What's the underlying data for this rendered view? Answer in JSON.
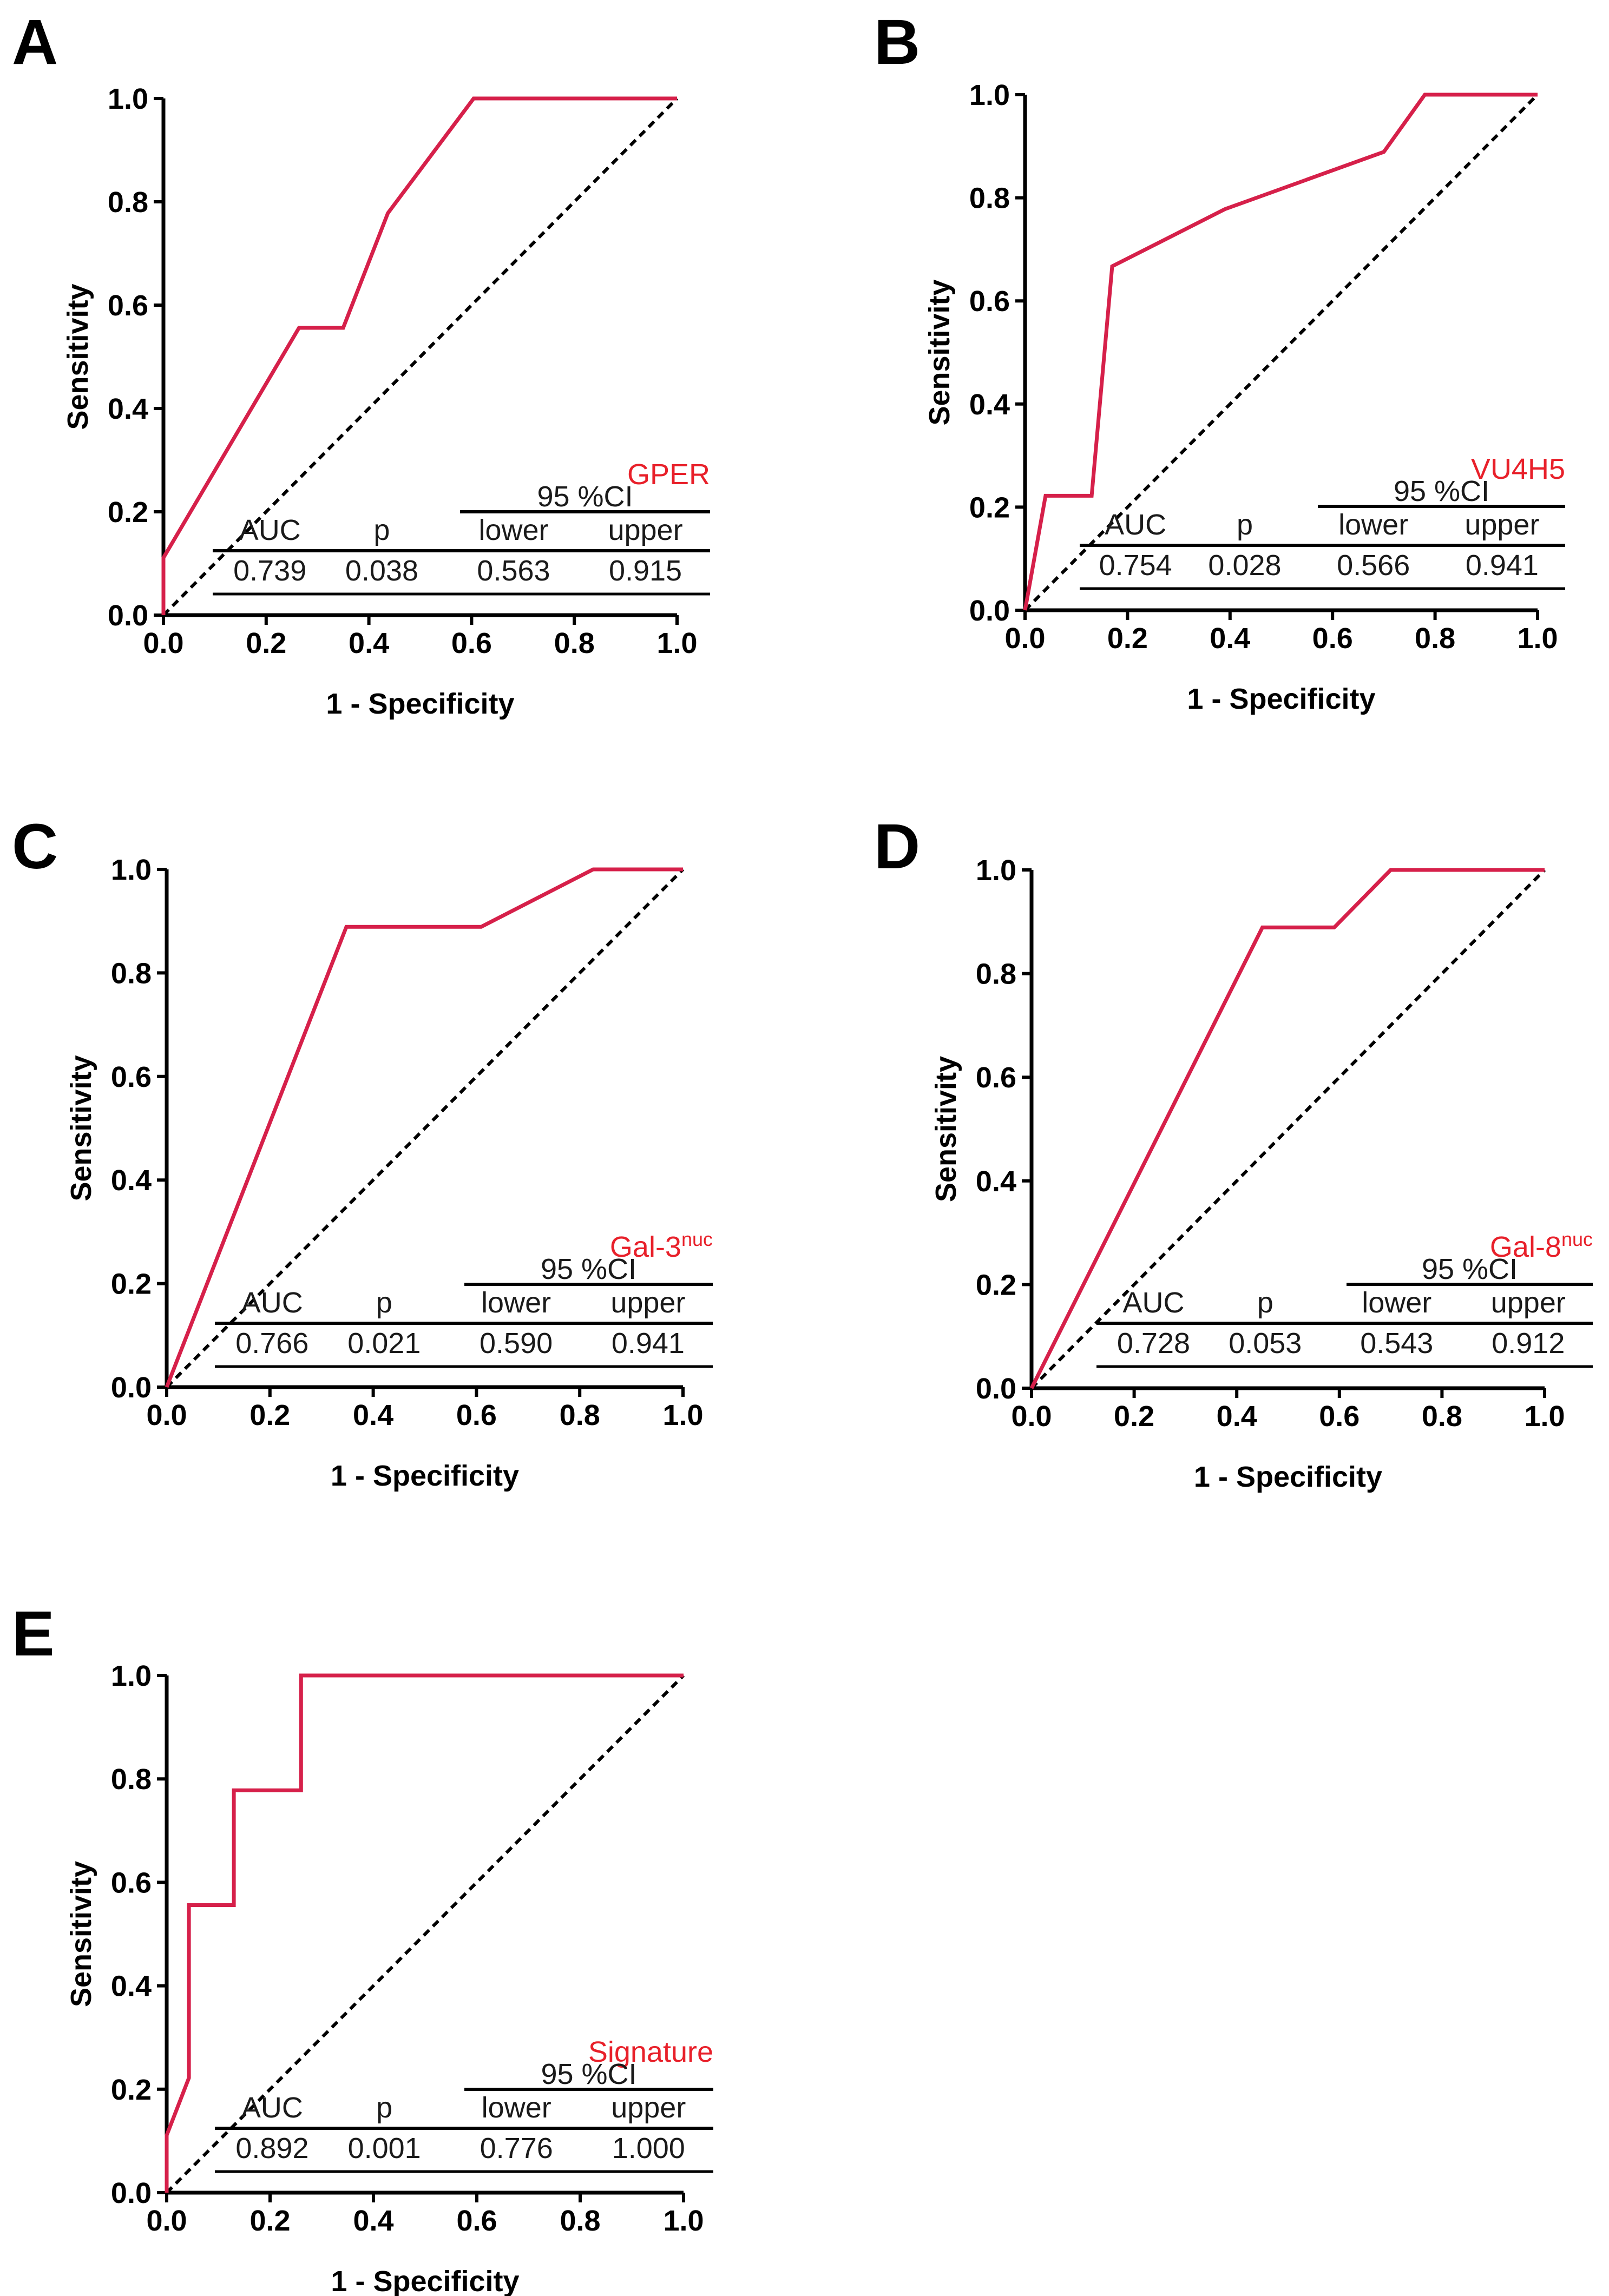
{
  "figure": {
    "x_label": "1 - Specificity",
    "y_label": "Sensitivity",
    "ticks": [
      "0.0",
      "0.2",
      "0.4",
      "0.6",
      "0.8",
      "1.0"
    ],
    "table_headers": {
      "ci": "95 %CI",
      "auc": "AUC",
      "p": "p",
      "lower": "lower",
      "upper": "upper"
    },
    "colors": {
      "roc": "#d6204a",
      "label": "#e8202a",
      "axis": "#000000",
      "reference": "#000000"
    }
  },
  "chart_data": [
    {
      "type": "line",
      "panel": "A",
      "marker": "GPER",
      "marker_sup": "",
      "xlabel": "1 - Specificity",
      "ylabel": "Sensitivity",
      "xlim": [
        0,
        1
      ],
      "ylim": [
        0,
        1
      ],
      "series": [
        {
          "name": "GPER",
          "x": [
            0,
            0,
            0.264,
            0.35,
            0.437,
            0.604,
            1.0
          ],
          "y": [
            0,
            0.111,
            0.556,
            0.556,
            0.778,
            1.0,
            1.0
          ]
        },
        {
          "name": "reference",
          "x": [
            0,
            1
          ],
          "y": [
            0,
            1
          ]
        }
      ],
      "stats": {
        "auc": "0.739",
        "p": "0.038",
        "lower": "0.563",
        "upper": "0.915"
      }
    },
    {
      "type": "line",
      "panel": "B",
      "marker": "VU4H5",
      "marker_sup": "",
      "xlabel": "1 - Specificity",
      "ylabel": "Sensitivity",
      "xlim": [
        0,
        1
      ],
      "ylim": [
        0,
        1
      ],
      "series": [
        {
          "name": "VU4H5",
          "x": [
            0,
            0.04,
            0.13,
            0.17,
            0.39,
            0.7,
            0.78,
            1.0
          ],
          "y": [
            0,
            0.222,
            0.222,
            0.667,
            0.778,
            0.889,
            1.0,
            1.0
          ]
        },
        {
          "name": "reference",
          "x": [
            0,
            1
          ],
          "y": [
            0,
            1
          ]
        }
      ],
      "stats": {
        "auc": "0.754",
        "p": "0.028",
        "lower": "0.566",
        "upper": "0.941"
      }
    },
    {
      "type": "line",
      "panel": "C",
      "marker": "Gal-3",
      "marker_sup": "nuc",
      "xlabel": "1 - Specificity",
      "ylabel": "Sensitivity",
      "xlim": [
        0,
        1
      ],
      "ylim": [
        0,
        1
      ],
      "series": [
        {
          "name": "Gal-3nuc",
          "x": [
            0,
            0.348,
            0.609,
            0.826,
            1.0
          ],
          "y": [
            0,
            0.889,
            0.889,
            1.0,
            1.0
          ]
        },
        {
          "name": "reference",
          "x": [
            0,
            1
          ],
          "y": [
            0,
            1
          ]
        }
      ],
      "stats": {
        "auc": "0.766",
        "p": "0.021",
        "lower": "0.590",
        "upper": "0.941"
      }
    },
    {
      "type": "line",
      "panel": "D",
      "marker": "Gal-8",
      "marker_sup": "nuc",
      "xlabel": "1 - Specificity",
      "ylabel": "Sensitivity",
      "xlim": [
        0,
        1
      ],
      "ylim": [
        0,
        1
      ],
      "series": [
        {
          "name": "Gal-8nuc",
          "x": [
            0,
            0.45,
            0.59,
            0.7,
            1.0
          ],
          "y": [
            0,
            0.889,
            0.889,
            1.0,
            1.0
          ]
        },
        {
          "name": "reference",
          "x": [
            0,
            1
          ],
          "y": [
            0,
            1
          ]
        }
      ],
      "stats": {
        "auc": "0.728",
        "p": "0.053",
        "lower": "0.543",
        "upper": "0.912"
      }
    },
    {
      "type": "line",
      "panel": "E",
      "marker": "Signature",
      "marker_sup": "",
      "xlabel": "1 - Specificity",
      "ylabel": "Sensitivity",
      "xlim": [
        0,
        1
      ],
      "ylim": [
        0,
        1
      ],
      "series": [
        {
          "name": "Signature",
          "x": [
            0,
            0,
            0.043,
            0.043,
            0.13,
            0.13,
            0.26,
            0.26,
            0.26,
            1.0
          ],
          "y": [
            0,
            0.111,
            0.222,
            0.556,
            0.556,
            0.778,
            0.778,
            1.0,
            1.0,
            1.0
          ]
        },
        {
          "name": "reference",
          "x": [
            0,
            1
          ],
          "y": [
            0,
            1
          ]
        }
      ],
      "stats": {
        "auc": "0.892",
        "p": "0.001",
        "lower": "0.776",
        "upper": "1.000"
      }
    }
  ]
}
